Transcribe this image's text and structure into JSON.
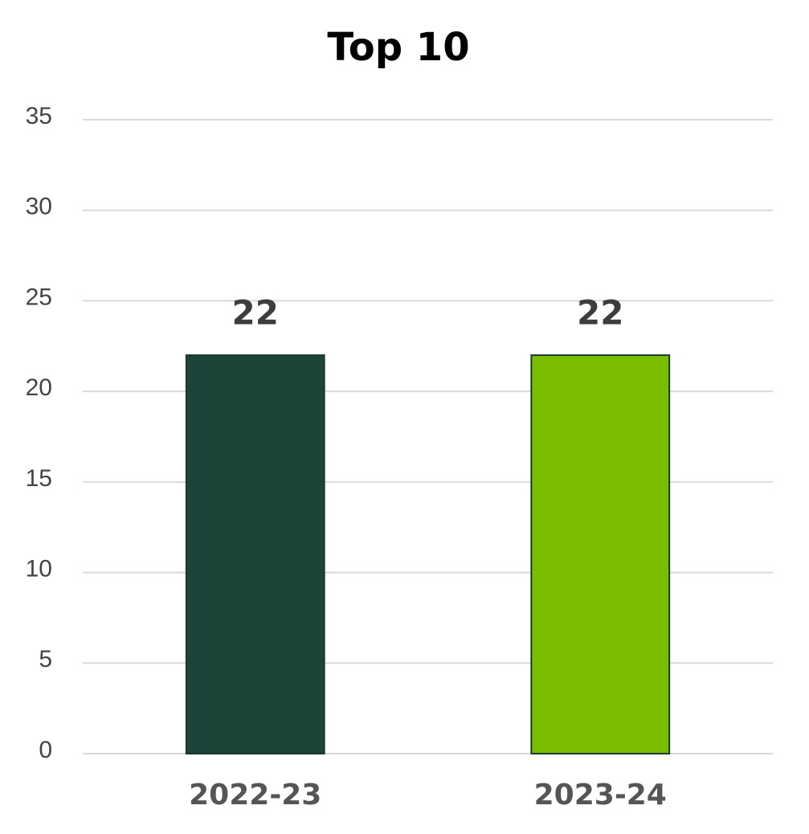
{
  "chart_data": {
    "type": "bar",
    "title": "Top 10",
    "categories": [
      "2022-23",
      "2023-24"
    ],
    "values": [
      22,
      22
    ],
    "colors": [
      "#1b4539",
      "#7abd00"
    ],
    "ylim": [
      0,
      35
    ],
    "yticks": [
      0,
      5,
      10,
      15,
      20,
      25,
      30,
      35
    ],
    "grid": true
  }
}
